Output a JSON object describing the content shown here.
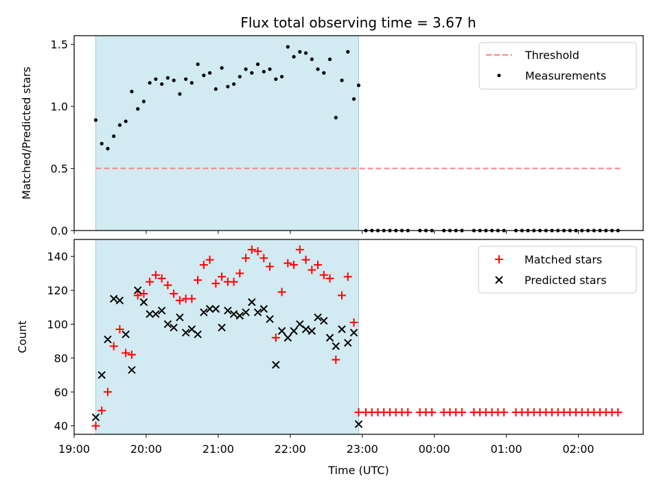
{
  "chart_data": [
    {
      "type": "scatter",
      "title": "Flux total observing time = 3.67 h",
      "ylabel": "Matched/Predicted stars",
      "xlabel": "",
      "xlim": [
        "19:00",
        "02:54"
      ],
      "ylim": [
        0,
        1.57
      ],
      "yticks": [
        0.0,
        0.5,
        1.0,
        1.5
      ],
      "ytick_labels": [
        "0.0",
        "0.5",
        "1.0",
        "1.5"
      ],
      "shaded_interval": [
        "19:18",
        "22:57"
      ],
      "shade_color": "#add8e6",
      "threshold": {
        "name": "Threshold",
        "value": 0.5,
        "x_range": [
          "19:18",
          "02:35"
        ],
        "color": "#ff7f7f",
        "style": "dashed"
      },
      "legend_position": "top-right",
      "legend": [
        "Threshold",
        "Measurements"
      ],
      "series": [
        {
          "name": "Measurements",
          "marker": "dot",
          "color": "#000000",
          "points": [
            [
              "19:18",
              0.89
            ],
            [
              "19:23",
              0.7
            ],
            [
              "19:28",
              0.66
            ],
            [
              "19:33",
              0.76
            ],
            [
              "19:38",
              0.85
            ],
            [
              "19:43",
              0.88
            ],
            [
              "19:48",
              1.12
            ],
            [
              "19:53",
              0.98
            ],
            [
              "19:58",
              1.04
            ],
            [
              "20:03",
              1.19
            ],
            [
              "20:08",
              1.22
            ],
            [
              "20:13",
              1.18
            ],
            [
              "20:18",
              1.23
            ],
            [
              "20:23",
              1.21
            ],
            [
              "20:28",
              1.1
            ],
            [
              "20:33",
              1.22
            ],
            [
              "20:38",
              1.19
            ],
            [
              "20:43",
              1.34
            ],
            [
              "20:48",
              1.25
            ],
            [
              "20:53",
              1.27
            ],
            [
              "20:58",
              1.14
            ],
            [
              "21:03",
              1.31
            ],
            [
              "21:08",
              1.16
            ],
            [
              "21:13",
              1.18
            ],
            [
              "21:18",
              1.24
            ],
            [
              "21:23",
              1.3
            ],
            [
              "21:28",
              1.27
            ],
            [
              "21:33",
              1.34
            ],
            [
              "21:38",
              1.28
            ],
            [
              "21:43",
              1.3
            ],
            [
              "21:48",
              1.22
            ],
            [
              "21:53",
              1.24
            ],
            [
              "21:58",
              1.48
            ],
            [
              "22:03",
              1.4
            ],
            [
              "22:08",
              1.44
            ],
            [
              "22:13",
              1.43
            ],
            [
              "22:18",
              1.38
            ],
            [
              "22:23",
              1.3
            ],
            [
              "22:28",
              1.27
            ],
            [
              "22:33",
              1.38
            ],
            [
              "22:38",
              0.91
            ],
            [
              "22:43",
              1.21
            ],
            [
              "22:48",
              1.44
            ],
            [
              "22:53",
              1.06
            ],
            [
              "22:57",
              1.17
            ],
            [
              "23:03",
              0
            ],
            [
              "23:08",
              0
            ],
            [
              "23:13",
              0
            ],
            [
              "23:18",
              0
            ],
            [
              "23:23",
              0
            ],
            [
              "23:28",
              0
            ],
            [
              "23:33",
              0
            ],
            [
              "23:38",
              0
            ],
            [
              "23:48",
              0
            ],
            [
              "23:53",
              0
            ],
            [
              "23:58",
              0
            ],
            [
              "00:08",
              0
            ],
            [
              "00:13",
              0
            ],
            [
              "00:18",
              0
            ],
            [
              "00:23",
              0
            ],
            [
              "00:33",
              0
            ],
            [
              "00:38",
              0
            ],
            [
              "00:43",
              0
            ],
            [
              "00:48",
              0
            ],
            [
              "00:53",
              0
            ],
            [
              "00:58",
              0
            ],
            [
              "01:08",
              0
            ],
            [
              "01:13",
              0
            ],
            [
              "01:18",
              0
            ],
            [
              "01:23",
              0
            ],
            [
              "01:28",
              0
            ],
            [
              "01:33",
              0
            ],
            [
              "01:38",
              0
            ],
            [
              "01:43",
              0
            ],
            [
              "01:48",
              0
            ],
            [
              "01:53",
              0
            ],
            [
              "01:58",
              0
            ],
            [
              "02:03",
              0
            ],
            [
              "02:08",
              0
            ],
            [
              "02:13",
              0
            ],
            [
              "02:18",
              0
            ],
            [
              "02:23",
              0
            ],
            [
              "02:28",
              0
            ],
            [
              "02:33",
              0
            ]
          ]
        }
      ]
    },
    {
      "type": "scatter",
      "title": "",
      "ylabel": "Count",
      "xlabel": "Time (UTC)",
      "xlim": [
        "19:00",
        "02:54"
      ],
      "xticks": [
        "19:00",
        "20:00",
        "21:00",
        "22:00",
        "23:00",
        "00:00",
        "01:00",
        "02:00"
      ],
      "ylim": [
        35,
        150
      ],
      "yticks": [
        40,
        60,
        80,
        100,
        120,
        140
      ],
      "shaded_interval": [
        "19:18",
        "22:57"
      ],
      "shade_color": "#add8e6",
      "legend_position": "top-right",
      "legend": [
        "Matched stars",
        "Predicted stars"
      ],
      "series": [
        {
          "name": "Matched stars",
          "marker": "plus",
          "color": "#ff0000",
          "points": [
            [
              "19:18",
              40
            ],
            [
              "19:23",
              49
            ],
            [
              "19:28",
              60
            ],
            [
              "19:33",
              87
            ],
            [
              "19:38",
              97
            ],
            [
              "19:43",
              83
            ],
            [
              "19:48",
              82
            ],
            [
              "19:53",
              117
            ],
            [
              "19:58",
              118
            ],
            [
              "20:03",
              125
            ],
            [
              "20:08",
              129
            ],
            [
              "20:13",
              127
            ],
            [
              "20:18",
              123
            ],
            [
              "20:23",
              118
            ],
            [
              "20:28",
              114
            ],
            [
              "20:33",
              115
            ],
            [
              "20:38",
              115
            ],
            [
              "20:43",
              126
            ],
            [
              "20:48",
              135
            ],
            [
              "20:53",
              138
            ],
            [
              "20:58",
              124
            ],
            [
              "21:03",
              128
            ],
            [
              "21:08",
              125
            ],
            [
              "21:13",
              125
            ],
            [
              "21:18",
              130
            ],
            [
              "21:23",
              139
            ],
            [
              "21:28",
              144
            ],
            [
              "21:33",
              143
            ],
            [
              "21:38",
              139
            ],
            [
              "21:43",
              134
            ],
            [
              "21:48",
              92
            ],
            [
              "21:53",
              119
            ],
            [
              "21:58",
              136
            ],
            [
              "22:03",
              135
            ],
            [
              "22:08",
              144
            ],
            [
              "22:13",
              138
            ],
            [
              "22:18",
              132
            ],
            [
              "22:23",
              135
            ],
            [
              "22:28",
              129
            ],
            [
              "22:33",
              127
            ],
            [
              "22:38",
              79
            ],
            [
              "22:43",
              117
            ],
            [
              "22:48",
              128
            ],
            [
              "22:53",
              101
            ],
            [
              "22:57",
              48
            ],
            [
              "23:03",
              48
            ],
            [
              "23:08",
              48
            ],
            [
              "23:13",
              48
            ],
            [
              "23:18",
              48
            ],
            [
              "23:23",
              48
            ],
            [
              "23:28",
              48
            ],
            [
              "23:33",
              48
            ],
            [
              "23:38",
              48
            ],
            [
              "23:48",
              48
            ],
            [
              "23:53",
              48
            ],
            [
              "23:58",
              48
            ],
            [
              "00:08",
              48
            ],
            [
              "00:13",
              48
            ],
            [
              "00:18",
              48
            ],
            [
              "00:23",
              48
            ],
            [
              "00:33",
              48
            ],
            [
              "00:38",
              48
            ],
            [
              "00:43",
              48
            ],
            [
              "00:48",
              48
            ],
            [
              "00:53",
              48
            ],
            [
              "00:58",
              48
            ],
            [
              "01:08",
              48
            ],
            [
              "01:13",
              48
            ],
            [
              "01:18",
              48
            ],
            [
              "01:23",
              48
            ],
            [
              "01:28",
              48
            ],
            [
              "01:33",
              48
            ],
            [
              "01:38",
              48
            ],
            [
              "01:43",
              48
            ],
            [
              "01:48",
              48
            ],
            [
              "01:53",
              48
            ],
            [
              "01:58",
              48
            ],
            [
              "02:03",
              48
            ],
            [
              "02:08",
              48
            ],
            [
              "02:13",
              48
            ],
            [
              "02:18",
              48
            ],
            [
              "02:23",
              48
            ],
            [
              "02:28",
              48
            ],
            [
              "02:33",
              48
            ]
          ]
        },
        {
          "name": "Predicted stars",
          "marker": "x",
          "color": "#000000",
          "points": [
            [
              "19:18",
              45
            ],
            [
              "19:23",
              70
            ],
            [
              "19:28",
              91
            ],
            [
              "19:33",
              115
            ],
            [
              "19:38",
              114
            ],
            [
              "19:43",
              94
            ],
            [
              "19:48",
              73
            ],
            [
              "19:53",
              120
            ],
            [
              "19:58",
              113
            ],
            [
              "20:03",
              106
            ],
            [
              "20:08",
              106
            ],
            [
              "20:13",
              108
            ],
            [
              "20:18",
              100
            ],
            [
              "20:23",
              98
            ],
            [
              "20:28",
              104
            ],
            [
              "20:33",
              95
            ],
            [
              "20:38",
              97
            ],
            [
              "20:43",
              94
            ],
            [
              "20:48",
              107
            ],
            [
              "20:53",
              109
            ],
            [
              "20:58",
              109
            ],
            [
              "21:03",
              98
            ],
            [
              "21:08",
              108
            ],
            [
              "21:13",
              106
            ],
            [
              "21:18",
              105
            ],
            [
              "21:23",
              107
            ],
            [
              "21:28",
              113
            ],
            [
              "21:33",
              107
            ],
            [
              "21:38",
              109
            ],
            [
              "21:43",
              103
            ],
            [
              "21:48",
              76
            ],
            [
              "21:53",
              96
            ],
            [
              "21:58",
              92
            ],
            [
              "22:03",
              96
            ],
            [
              "22:08",
              100
            ],
            [
              "22:13",
              97
            ],
            [
              "22:18",
              96
            ],
            [
              "22:23",
              104
            ],
            [
              "22:28",
              102
            ],
            [
              "22:33",
              92
            ],
            [
              "22:38",
              87
            ],
            [
              "22:43",
              97
            ],
            [
              "22:48",
              89
            ],
            [
              "22:53",
              95
            ],
            [
              "22:57",
              41
            ]
          ]
        }
      ]
    }
  ]
}
